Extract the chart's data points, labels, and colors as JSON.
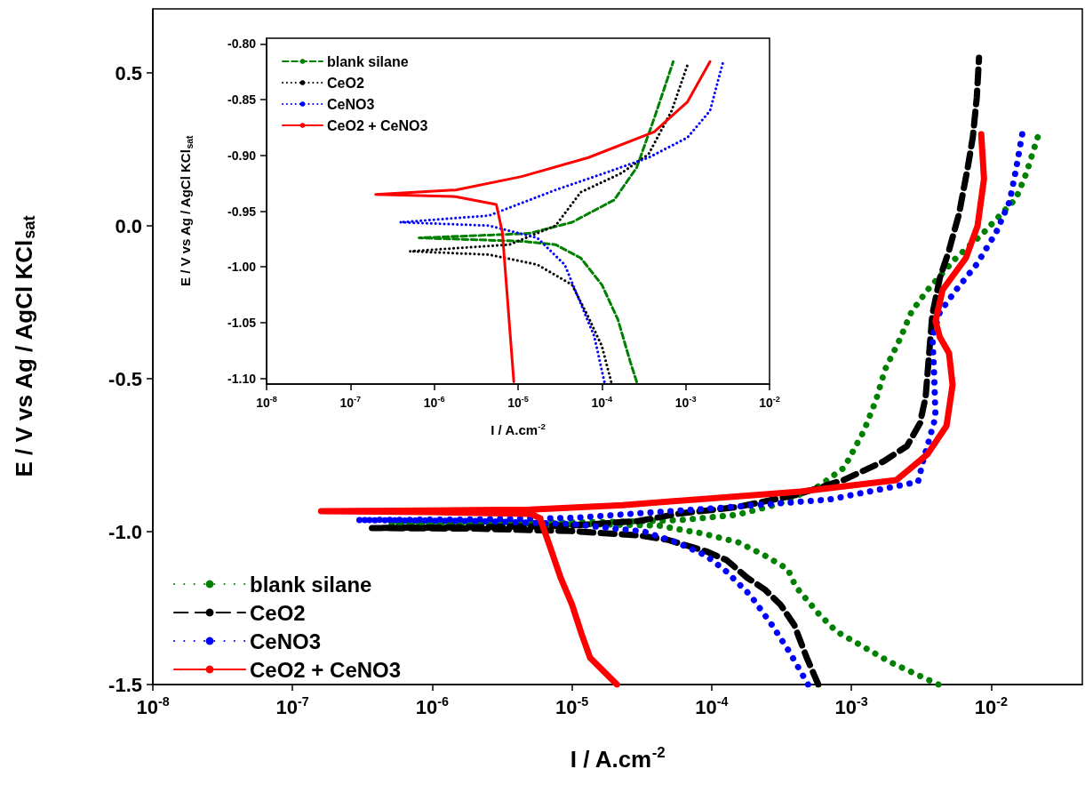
{
  "chart_data": [
    {
      "type": "line",
      "xlabel": "I / A.cm$^{-2}$",
      "ylabel": "E / V vs Ag / AgCl KCl$_{sat}$",
      "log": "x",
      "legend": "bottom left",
      "xlim": [
        1e-08,
        0.045
      ],
      "ylim": [
        -1.5,
        0.71
      ],
      "xticks": [
        {
          "value": 1e-08,
          "label": "10$^{-8}$"
        },
        {
          "value": 1e-07,
          "label": "10$^{-7}$"
        },
        {
          "value": 1e-06,
          "label": "10$^{-6}$"
        },
        {
          "value": 1e-05,
          "label": "10$^{-5}$"
        },
        {
          "value": 0.0001,
          "label": "10$^{-4}$"
        },
        {
          "value": 0.001,
          "label": "10$^{-3}$"
        },
        {
          "value": 0.01,
          "label": "10$^{-2}$"
        }
      ],
      "yticks": [
        -1.5,
        {
          "value": -1.0,
          "label": "-1.0"
        },
        -0.5,
        {
          "value": 0,
          "label": "0.0"
        },
        0.5
      ],
      "series": [
        {
          "name": "blank silane",
          "color": "#008000",
          "line_style": "dotted",
          "x": [
            0.0042,
            0.0019,
            0.00078,
            0.00058,
            0.0004,
            0.00035,
            0.00024,
            0.000155,
            8.7e-05,
            5.6e-05,
            4.2e-05,
            1.5e-05,
            3e-06,
            5e-07,
            3e-06,
            2e-05,
            6e-05,
            0.00015,
            0.0003,
            0.00059,
            0.00089,
            0.00123,
            0.0015,
            0.00174,
            0.0022,
            0.0027,
            0.0035,
            0.0056,
            0.0085,
            0.0151,
            0.0178,
            0.0219
          ],
          "values": [
            -1.5,
            -1.427,
            -1.326,
            -1.267,
            -1.18,
            -1.122,
            -1.078,
            -1.035,
            -1.006,
            -0.991,
            -0.98,
            -0.976,
            -0.975,
            -0.974,
            -0.972,
            -0.968,
            -0.962,
            -0.945,
            -0.91,
            -0.85,
            -0.79,
            -0.67,
            -0.57,
            -0.47,
            -0.375,
            -0.28,
            -0.21,
            -0.105,
            -0.03,
            0.09,
            0.17,
            0.3
          ]
        },
        {
          "name": "CeO2",
          "color": "#000000",
          "line_style": "dashed",
          "x": [
            0.00058,
            0.00048,
            0.00039,
            0.00031,
            0.00024,
            0.00018,
            0.000128,
            9.1e-05,
            4.8e-05,
            3e-05,
            1e-05,
            2e-06,
            3.7e-07,
            2e-06,
            1e-05,
            3e-05,
            6e-05,
            0.00015,
            0.0004,
            0.00089,
            0.0017,
            0.0025,
            0.0031,
            0.0034,
            0.0036,
            0.0038,
            0.0043,
            0.005,
            0.0059,
            0.0068,
            0.0074,
            0.0079,
            0.0082
          ],
          "values": [
            -1.5,
            -1.413,
            -1.305,
            -1.238,
            -1.189,
            -1.151,
            -1.093,
            -1.064,
            -1.026,
            -1.012,
            -0.998,
            -0.99,
            -0.988,
            -0.985,
            -0.98,
            -0.965,
            -0.94,
            -0.92,
            -0.88,
            -0.83,
            -0.77,
            -0.72,
            -0.645,
            -0.56,
            -0.42,
            -0.29,
            -0.17,
            -0.08,
            0.04,
            0.19,
            0.29,
            0.42,
            0.55
          ]
        },
        {
          "name": "CeNO3",
          "color": "#0000ff",
          "line_style": "dotted",
          "x": [
            0.00049,
            0.00036,
            0.00027,
            0.00019,
            0.000128,
            9.1e-05,
            5.6e-05,
            3.3e-05,
            1e-05,
            2e-06,
            2.9e-07,
            2e-06,
            1e-05,
            0.0001,
            0.00069,
            0.003,
            0.0033,
            0.0036,
            0.004,
            0.0039,
            0.0038,
            0.0043,
            0.0056,
            0.0079,
            0.0109,
            0.0136,
            0.0151,
            0.017
          ],
          "values": [
            -1.5,
            -1.393,
            -1.305,
            -1.209,
            -1.131,
            -1.078,
            -1.035,
            -1.0,
            -0.975,
            -0.965,
            -0.962,
            -0.96,
            -0.955,
            -0.924,
            -0.895,
            -0.837,
            -0.759,
            -0.7,
            -0.625,
            -0.468,
            -0.364,
            -0.282,
            -0.21,
            -0.125,
            -0.02,
            0.081,
            0.186,
            0.32
          ]
        },
        {
          "name": "CeO2 + CeNO3",
          "color": "#ff0000",
          "line_style": "solid",
          "x": [
            2.1e-05,
            1.35e-05,
            1.17e-05,
            1e-05,
            8.3e-06,
            6.9e-06,
            5.9e-06,
            5.1e-06,
            1e-06,
            1.6e-07,
            1e-06,
            5e-06,
            2.3e-05,
            0.00043,
            0.0021,
            0.0035,
            0.0048,
            0.0053,
            0.005,
            0.0043,
            0.004,
            0.0045,
            0.0066,
            0.008,
            0.0089,
            0.0085
          ],
          "values": [
            -1.5,
            -1.413,
            -1.334,
            -1.238,
            -1.151,
            -1.044,
            -0.956,
            -0.942,
            -0.936,
            -0.933,
            -0.931,
            -0.928,
            -0.913,
            -0.869,
            -0.831,
            -0.747,
            -0.654,
            -0.52,
            -0.416,
            -0.364,
            -0.311,
            -0.209,
            -0.105,
            0.0,
            0.154,
            0.3
          ]
        }
      ]
    },
    {
      "type": "line",
      "xlabel": "I / A.cm$^{-2}$",
      "ylabel": "E / V vs Ag / AgCl KCl$_{sat}$",
      "log": "x",
      "legend": "top left",
      "xlim": [
        1e-08,
        0.01
      ],
      "ylim": [
        -1.105,
        -0.795
      ],
      "xticks": [
        {
          "value": 1e-08,
          "label": "10$^{-8}$"
        },
        {
          "value": 1e-07,
          "label": "10$^{-7}$"
        },
        {
          "value": 1e-06,
          "label": "10$^{-6}$"
        },
        {
          "value": 1e-05,
          "label": "10$^{-5}$"
        },
        {
          "value": 0.0001,
          "label": "10$^{-4}$"
        },
        {
          "value": 0.001,
          "label": "10$^{-3}$"
        },
        {
          "value": 0.01,
          "label": "10$^{-2}$"
        }
      ],
      "yticks": [
        {
          "value": -1.1,
          "label": "-1.10"
        },
        -1.05,
        {
          "value": -1.0,
          "label": "-1.00"
        },
        -0.95,
        {
          "value": -0.9,
          "label": "-0.90"
        },
        -0.85,
        {
          "value": -0.8,
          "label": "-0.80"
        }
      ],
      "series": [
        {
          "name": "blank silane",
          "color": "#008000",
          "line_style": "dashed",
          "x": [
            0.00026,
            0.00022,
            0.000155,
            0.0001,
            5.6e-05,
            2.8e-05,
            1.1e-05,
            6.6e-07,
            1.35e-05,
            4.4e-05,
            0.00014,
            0.00026,
            0.00042,
            0.00071
          ],
          "values": [
            -1.103,
            -1.086,
            -1.047,
            -1.016,
            -0.992,
            -0.98,
            -0.977,
            -0.974,
            -0.97,
            -0.96,
            -0.94,
            -0.911,
            -0.867,
            -0.816
          ]
        },
        {
          "name": "CeO2",
          "color": "#000000",
          "line_style": "dotted",
          "x": [
            0.000129,
            0.0001,
            6.9e-05,
            4.4e-05,
            1.7e-05,
            4.5e-06,
            5.1e-07,
            7.9e-06,
            2.8e-05,
            5.6e-05,
            0.00017,
            0.00036,
            0.00068,
            0.00105
          ],
          "values": [
            -1.103,
            -1.071,
            -1.045,
            -1.016,
            -0.998,
            -0.989,
            -0.986,
            -0.98,
            -0.963,
            -0.933,
            -0.916,
            -0.899,
            -0.86,
            -0.819
          ]
        },
        {
          "name": "CeNO3",
          "color": "#0000ff",
          "line_style": "dotted",
          "x": [
            0.000107,
            8.1e-05,
            5.6e-05,
            3.6e-05,
            1.7e-05,
            4.5e-06,
            3.9e-07,
            4.5e-06,
            2.8e-05,
            0.000107,
            0.00036,
            0.00105,
            0.00195,
            0.0028
          ],
          "values": [
            -1.103,
            -1.062,
            -1.033,
            -0.998,
            -0.974,
            -0.963,
            -0.96,
            -0.954,
            -0.931,
            -0.916,
            -0.902,
            -0.884,
            -0.86,
            -0.816
          ]
        },
        {
          "name": "CeO2 + CeNO3",
          "color": "#ff0000",
          "line_style": "solid",
          "x": [
            8.9e-06,
            6.5e-06,
            5.5e-06,
            1.8e-06,
            2e-07,
            1.8e-06,
            1.1e-05,
            6.9e-05,
            0.00042,
            0.00105,
            0.00195
          ],
          "values": [
            -1.103,
            -0.969,
            -0.944,
            -0.937,
            -0.935,
            -0.931,
            -0.919,
            -0.902,
            -0.879,
            -0.852,
            -0.816
          ]
        }
      ]
    }
  ]
}
